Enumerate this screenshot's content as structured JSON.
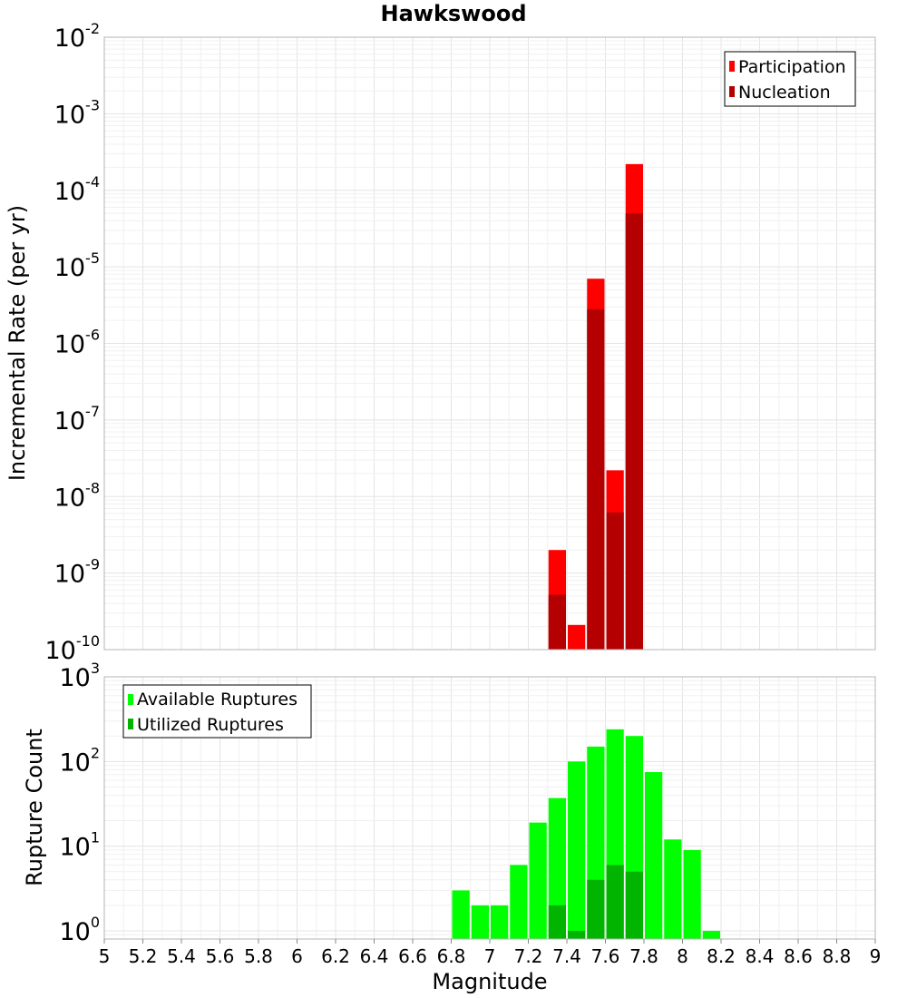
{
  "chart_data": [
    {
      "type": "bar",
      "title": "Hawkswood",
      "ylabel": "Incremental Rate (per yr)",
      "xlabel": "",
      "xlim": [
        5,
        9
      ],
      "yscale": "log",
      "ylim": [
        1e-10,
        0.01
      ],
      "legend_position": "top-right",
      "grid": true,
      "series": [
        {
          "name": "Participation",
          "color": "#ff0000",
          "x": [
            7.35,
            7.45,
            7.55,
            7.65,
            7.75
          ],
          "values": [
            2e-09,
            2.1e-10,
            7e-06,
            2.2e-08,
            0.00022
          ]
        },
        {
          "name": "Nucleation",
          "color": "#b40000",
          "x": [
            7.35,
            7.55,
            7.65,
            7.75
          ],
          "values": [
            5.2e-10,
            2.8e-06,
            6.2e-09,
            5e-05
          ]
        }
      ]
    },
    {
      "type": "bar",
      "title": "",
      "ylabel": "Rupture Count",
      "xlabel": "Magnitude",
      "xlim": [
        5,
        9
      ],
      "yscale": "log",
      "ylim": [
        0.8,
        1000
      ],
      "legend_position": "top-left",
      "grid": true,
      "series": [
        {
          "name": "Available Ruptures",
          "color": "#00ff00",
          "x": [
            6.85,
            6.95,
            7.05,
            7.15,
            7.25,
            7.35,
            7.45,
            7.55,
            7.65,
            7.75,
            7.85,
            7.95,
            8.05,
            8.15
          ],
          "values": [
            3,
            2,
            2,
            6,
            19,
            37,
            100,
            150,
            240,
            200,
            75,
            12,
            9,
            1
          ]
        },
        {
          "name": "Utilized Ruptures",
          "color": "#00b400",
          "x": [
            7.35,
            7.45,
            7.55,
            7.65,
            7.75
          ],
          "values": [
            2,
            1,
            4,
            6,
            5
          ]
        }
      ]
    }
  ],
  "x_ticks": [
    "5",
    "5.2",
    "5.4",
    "5.6",
    "5.8",
    "6",
    "6.2",
    "6.4",
    "6.6",
    "6.8",
    "7",
    "7.2",
    "7.4",
    "7.6",
    "7.8",
    "8",
    "8.2",
    "8.4",
    "8.6",
    "8.8",
    "9"
  ],
  "top_y_ticks": [
    {
      "base": "10",
      "exp": "-2"
    },
    {
      "base": "10",
      "exp": "-3"
    },
    {
      "base": "10",
      "exp": "-4"
    },
    {
      "base": "10",
      "exp": "-5"
    },
    {
      "base": "10",
      "exp": "-6"
    },
    {
      "base": "10",
      "exp": "-7"
    },
    {
      "base": "10",
      "exp": "-8"
    },
    {
      "base": "10",
      "exp": "-9"
    },
    {
      "base": "10",
      "exp": "-10"
    }
  ],
  "bottom_y_ticks": [
    {
      "base": "10",
      "exp": "3"
    },
    {
      "base": "10",
      "exp": "2"
    },
    {
      "base": "10",
      "exp": "1"
    },
    {
      "base": "10",
      "exp": "0"
    }
  ]
}
